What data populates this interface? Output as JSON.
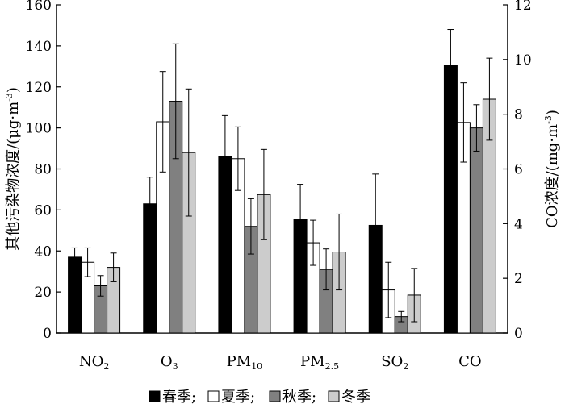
{
  "chart_data": {
    "type": "bar",
    "categories": [
      {
        "main": "NO",
        "sub": "2"
      },
      {
        "main": "O",
        "sub": "3"
      },
      {
        "main": "PM",
        "sub": "10"
      },
      {
        "main": "PM",
        "sub": "2.5"
      },
      {
        "main": "SO",
        "sub": "2"
      },
      {
        "main": "CO",
        "sub": ""
      }
    ],
    "series": [
      {
        "name": "春季",
        "color": "#000000",
        "values": [
          37,
          63,
          86,
          55.5,
          52.5,
          9.8
        ],
        "errors": [
          4.5,
          13,
          20,
          17,
          25,
          1.3
        ]
      },
      {
        "name": "夏季",
        "color": "#ffffff",
        "values": [
          34.5,
          103,
          85,
          44,
          21,
          7.7
        ],
        "errors": [
          7,
          24.5,
          15.5,
          11,
          13.5,
          1.45
        ]
      },
      {
        "name": "秋季",
        "color": "#808080",
        "values": [
          23,
          113,
          52,
          31,
          8,
          7.5
        ],
        "errors": [
          5,
          28,
          13.5,
          10,
          2.5,
          0.85
        ]
      },
      {
        "name": "冬季",
        "color": "#cccccc",
        "values": [
          32,
          88,
          67.5,
          39.5,
          18.5,
          8.55
        ],
        "errors": [
          7,
          31,
          22,
          18.5,
          13,
          1.5
        ]
      }
    ],
    "y_left": {
      "label_main": "其他污染物浓度/(μg·m",
      "label_sup": "-3",
      "label_close": ")",
      "range": [
        0,
        160
      ],
      "ticks": [
        "0",
        "20",
        "40",
        "60",
        "80",
        "100",
        "120",
        "140",
        "160"
      ]
    },
    "y_right": {
      "label_main": "CO浓度/(mg·m",
      "label_sup": "-3",
      "label_close": ")",
      "range": [
        0,
        12
      ],
      "ticks": [
        "0",
        "2",
        "4",
        "6",
        "8",
        "10",
        "12"
      ]
    },
    "right_axis_category": "CO",
    "legend_separator": ";",
    "grid": false,
    "legend_position": "bottom-center"
  }
}
